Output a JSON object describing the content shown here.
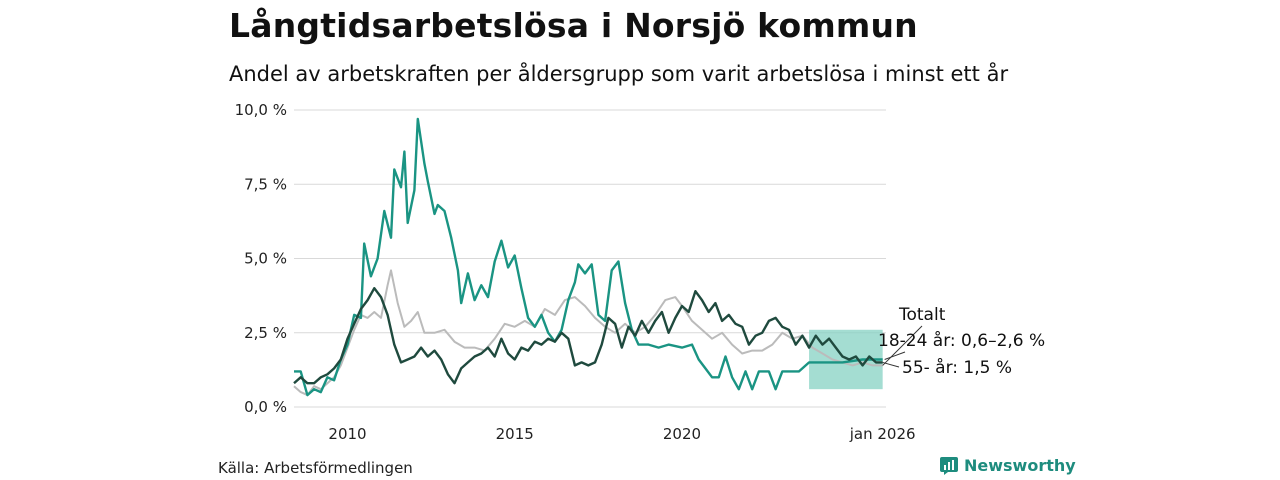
{
  "header": {
    "title": "Långtidsarbetslösa i Norsjö kommun",
    "subtitle": "Andel av arbetskraften per åldersgrupp som varit arbetslösa i minst ett år"
  },
  "footer": {
    "source": "Källa: Arbetsförmedlingen",
    "brand": "Newsworthy"
  },
  "colors": {
    "youth": "#1a9483",
    "old": "#1f4a3e",
    "total": "#bbbbbb",
    "band": "#86d1c3",
    "grid": "#d9d9d9"
  },
  "chart_data": {
    "type": "line",
    "title": "Långtidsarbetslösa i Norsjö kommun",
    "subtitle": "Andel av arbetskraften per åldersgrupp som varit arbetslösa i minst ett år",
    "xlim": [
      2008.4,
      2026.1
    ],
    "ylim": [
      0,
      10
    ],
    "y_ticks": [
      {
        "value": 0,
        "label": "0,0 %"
      },
      {
        "value": 2.5,
        "label": "2,5 %"
      },
      {
        "value": 5,
        "label": "5,0 %"
      },
      {
        "value": 7.5,
        "label": "7,5 %"
      },
      {
        "value": 10,
        "label": "10,0 %"
      }
    ],
    "x_ticks": [
      {
        "value": 2010,
        "label": "2010"
      },
      {
        "value": 2015,
        "label": "2015"
      },
      {
        "value": 2020,
        "label": "2020"
      },
      {
        "value": 2026,
        "label": "jan 2026"
      }
    ],
    "annotations": {
      "total": "Totalt",
      "youth": "18-24 år: 0,6–2,6 %",
      "old": "55- år: 1,5 %"
    },
    "forecast_band": {
      "name": "18-24 år",
      "x": [
        2023.8,
        2026.0
      ],
      "low": 0.6,
      "high": 2.6
    },
    "series": [
      {
        "name": "18-24 år",
        "key": "youth",
        "points": [
          [
            2008.4,
            1.2
          ],
          [
            2008.6,
            1.2
          ],
          [
            2008.8,
            0.4
          ],
          [
            2009.0,
            0.6
          ],
          [
            2009.2,
            0.5
          ],
          [
            2009.4,
            1.0
          ],
          [
            2009.6,
            0.9
          ],
          [
            2009.8,
            1.6
          ],
          [
            2010.0,
            2.1
          ],
          [
            2010.2,
            3.1
          ],
          [
            2010.4,
            3.0
          ],
          [
            2010.5,
            5.5
          ],
          [
            2010.7,
            4.4
          ],
          [
            2010.9,
            5.0
          ],
          [
            2011.1,
            6.6
          ],
          [
            2011.3,
            5.7
          ],
          [
            2011.4,
            8.0
          ],
          [
            2011.6,
            7.4
          ],
          [
            2011.7,
            8.6
          ],
          [
            2011.8,
            6.2
          ],
          [
            2012.0,
            7.3
          ],
          [
            2012.1,
            9.7
          ],
          [
            2012.3,
            8.2
          ],
          [
            2012.4,
            7.6
          ],
          [
            2012.6,
            6.5
          ],
          [
            2012.7,
            6.8
          ],
          [
            2012.9,
            6.6
          ],
          [
            2013.1,
            5.7
          ],
          [
            2013.3,
            4.6
          ],
          [
            2013.4,
            3.5
          ],
          [
            2013.6,
            4.5
          ],
          [
            2013.8,
            3.6
          ],
          [
            2014.0,
            4.1
          ],
          [
            2014.2,
            3.7
          ],
          [
            2014.4,
            4.9
          ],
          [
            2014.6,
            5.6
          ],
          [
            2014.8,
            4.7
          ],
          [
            2015.0,
            5.1
          ],
          [
            2015.2,
            4.0
          ],
          [
            2015.4,
            3.0
          ],
          [
            2015.6,
            2.7
          ],
          [
            2015.8,
            3.1
          ],
          [
            2016.0,
            2.5
          ],
          [
            2016.2,
            2.2
          ],
          [
            2016.4,
            2.6
          ],
          [
            2016.6,
            3.6
          ],
          [
            2016.8,
            4.2
          ],
          [
            2016.9,
            4.8
          ],
          [
            2017.1,
            4.5
          ],
          [
            2017.3,
            4.8
          ],
          [
            2017.5,
            3.1
          ],
          [
            2017.7,
            2.9
          ],
          [
            2017.9,
            4.6
          ],
          [
            2018.1,
            4.9
          ],
          [
            2018.3,
            3.5
          ],
          [
            2018.5,
            2.6
          ],
          [
            2018.7,
            2.1
          ],
          [
            2019.0,
            2.1
          ],
          [
            2019.3,
            2.0
          ],
          [
            2019.6,
            2.1
          ],
          [
            2020.0,
            2.0
          ],
          [
            2020.3,
            2.1
          ],
          [
            2020.5,
            1.6
          ],
          [
            2020.7,
            1.3
          ],
          [
            2020.9,
            1.0
          ],
          [
            2021.1,
            1.0
          ],
          [
            2021.3,
            1.7
          ],
          [
            2021.5,
            1.0
          ],
          [
            2021.7,
            0.6
          ],
          [
            2021.9,
            1.2
          ],
          [
            2022.1,
            0.6
          ],
          [
            2022.3,
            1.2
          ],
          [
            2022.6,
            1.2
          ],
          [
            2022.8,
            0.6
          ],
          [
            2023.0,
            1.2
          ],
          [
            2023.5,
            1.2
          ],
          [
            2023.8,
            1.5
          ],
          [
            2024.2,
            1.5
          ],
          [
            2024.8,
            1.5
          ],
          [
            2025.4,
            1.6
          ],
          [
            2026.0,
            1.6
          ]
        ]
      },
      {
        "name": "55- år",
        "key": "old",
        "points": [
          [
            2008.4,
            0.8
          ],
          [
            2008.6,
            1.0
          ],
          [
            2008.8,
            0.8
          ],
          [
            2009.0,
            0.8
          ],
          [
            2009.2,
            1.0
          ],
          [
            2009.4,
            1.1
          ],
          [
            2009.6,
            1.3
          ],
          [
            2009.8,
            1.6
          ],
          [
            2010.0,
            2.3
          ],
          [
            2010.2,
            2.8
          ],
          [
            2010.4,
            3.3
          ],
          [
            2010.6,
            3.6
          ],
          [
            2010.8,
            4.0
          ],
          [
            2011.0,
            3.7
          ],
          [
            2011.2,
            3.1
          ],
          [
            2011.4,
            2.1
          ],
          [
            2011.6,
            1.5
          ],
          [
            2011.8,
            1.6
          ],
          [
            2012.0,
            1.7
          ],
          [
            2012.2,
            2.0
          ],
          [
            2012.4,
            1.7
          ],
          [
            2012.6,
            1.9
          ],
          [
            2012.8,
            1.6
          ],
          [
            2013.0,
            1.1
          ],
          [
            2013.2,
            0.8
          ],
          [
            2013.4,
            1.3
          ],
          [
            2013.6,
            1.5
          ],
          [
            2013.8,
            1.7
          ],
          [
            2014.0,
            1.8
          ],
          [
            2014.2,
            2.0
          ],
          [
            2014.4,
            1.7
          ],
          [
            2014.6,
            2.3
          ],
          [
            2014.8,
            1.8
          ],
          [
            2015.0,
            1.6
          ],
          [
            2015.2,
            2.0
          ],
          [
            2015.4,
            1.9
          ],
          [
            2015.6,
            2.2
          ],
          [
            2015.8,
            2.1
          ],
          [
            2016.0,
            2.3
          ],
          [
            2016.2,
            2.2
          ],
          [
            2016.4,
            2.5
          ],
          [
            2016.6,
            2.3
          ],
          [
            2016.8,
            1.4
          ],
          [
            2017.0,
            1.5
          ],
          [
            2017.2,
            1.4
          ],
          [
            2017.4,
            1.5
          ],
          [
            2017.6,
            2.1
          ],
          [
            2017.8,
            3.0
          ],
          [
            2018.0,
            2.8
          ],
          [
            2018.2,
            2.0
          ],
          [
            2018.4,
            2.7
          ],
          [
            2018.6,
            2.4
          ],
          [
            2018.8,
            2.9
          ],
          [
            2019.0,
            2.5
          ],
          [
            2019.2,
            2.9
          ],
          [
            2019.4,
            3.2
          ],
          [
            2019.6,
            2.5
          ],
          [
            2019.8,
            3.0
          ],
          [
            2020.0,
            3.4
          ],
          [
            2020.2,
            3.2
          ],
          [
            2020.4,
            3.9
          ],
          [
            2020.6,
            3.6
          ],
          [
            2020.8,
            3.2
          ],
          [
            2021.0,
            3.5
          ],
          [
            2021.2,
            2.9
          ],
          [
            2021.4,
            3.1
          ],
          [
            2021.6,
            2.8
          ],
          [
            2021.8,
            2.7
          ],
          [
            2022.0,
            2.1
          ],
          [
            2022.2,
            2.4
          ],
          [
            2022.4,
            2.5
          ],
          [
            2022.6,
            2.9
          ],
          [
            2022.8,
            3.0
          ],
          [
            2023.0,
            2.7
          ],
          [
            2023.2,
            2.6
          ],
          [
            2023.4,
            2.1
          ],
          [
            2023.6,
            2.4
          ],
          [
            2023.8,
            2.0
          ],
          [
            2024.0,
            2.4
          ],
          [
            2024.2,
            2.1
          ],
          [
            2024.4,
            2.3
          ],
          [
            2024.6,
            2.0
          ],
          [
            2024.8,
            1.7
          ],
          [
            2025.0,
            1.6
          ],
          [
            2025.2,
            1.7
          ],
          [
            2025.4,
            1.4
          ],
          [
            2025.6,
            1.7
          ],
          [
            2025.8,
            1.5
          ],
          [
            2026.0,
            1.5
          ]
        ]
      },
      {
        "name": "Totalt",
        "key": "total",
        "points": [
          [
            2008.4,
            0.7
          ],
          [
            2008.6,
            0.5
          ],
          [
            2008.8,
            0.4
          ],
          [
            2009.0,
            0.7
          ],
          [
            2009.2,
            0.6
          ],
          [
            2009.4,
            0.8
          ],
          [
            2009.6,
            1.0
          ],
          [
            2009.8,
            1.4
          ],
          [
            2010.0,
            2.0
          ],
          [
            2010.2,
            2.6
          ],
          [
            2010.4,
            3.1
          ],
          [
            2010.6,
            3.0
          ],
          [
            2010.8,
            3.2
          ],
          [
            2011.0,
            3.0
          ],
          [
            2011.2,
            4.1
          ],
          [
            2011.3,
            4.6
          ],
          [
            2011.5,
            3.5
          ],
          [
            2011.7,
            2.7
          ],
          [
            2011.9,
            2.9
          ],
          [
            2012.1,
            3.2
          ],
          [
            2012.3,
            2.5
          ],
          [
            2012.6,
            2.5
          ],
          [
            2012.9,
            2.6
          ],
          [
            2013.2,
            2.2
          ],
          [
            2013.5,
            2.0
          ],
          [
            2013.8,
            2.0
          ],
          [
            2014.1,
            1.9
          ],
          [
            2014.4,
            2.3
          ],
          [
            2014.7,
            2.8
          ],
          [
            2015.0,
            2.7
          ],
          [
            2015.3,
            2.9
          ],
          [
            2015.6,
            2.7
          ],
          [
            2015.9,
            3.3
          ],
          [
            2016.2,
            3.1
          ],
          [
            2016.5,
            3.6
          ],
          [
            2016.8,
            3.7
          ],
          [
            2017.1,
            3.4
          ],
          [
            2017.4,
            3.0
          ],
          [
            2017.7,
            2.7
          ],
          [
            2018.0,
            2.5
          ],
          [
            2018.3,
            2.8
          ],
          [
            2018.6,
            2.5
          ],
          [
            2018.9,
            2.7
          ],
          [
            2019.2,
            3.1
          ],
          [
            2019.5,
            3.6
          ],
          [
            2019.8,
            3.7
          ],
          [
            2020.0,
            3.4
          ],
          [
            2020.3,
            2.9
          ],
          [
            2020.6,
            2.6
          ],
          [
            2020.9,
            2.3
          ],
          [
            2021.2,
            2.5
          ],
          [
            2021.5,
            2.1
          ],
          [
            2021.8,
            1.8
          ],
          [
            2022.1,
            1.9
          ],
          [
            2022.4,
            1.9
          ],
          [
            2022.7,
            2.1
          ],
          [
            2023.0,
            2.5
          ],
          [
            2023.3,
            2.3
          ],
          [
            2023.6,
            2.4
          ],
          [
            2023.9,
            2.0
          ],
          [
            2024.2,
            1.8
          ],
          [
            2024.5,
            1.6
          ],
          [
            2024.8,
            1.5
          ],
          [
            2025.1,
            1.4
          ],
          [
            2025.4,
            1.5
          ],
          [
            2025.7,
            1.4
          ],
          [
            2026.0,
            1.4
          ]
        ]
      }
    ]
  }
}
